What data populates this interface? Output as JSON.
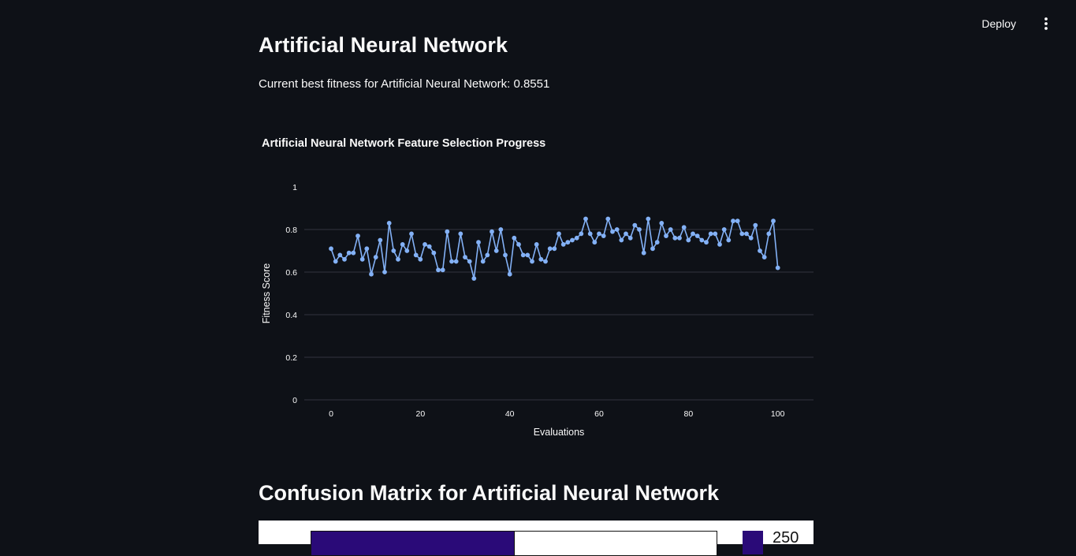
{
  "header": {
    "deploy_label": "Deploy",
    "menu_icon": "vertical-dots-icon"
  },
  "main": {
    "title": "Artificial Neural Network",
    "fitness_text": "Current best fitness for Artificial Neural Network: 0.8551"
  },
  "chart_data": {
    "type": "line",
    "title": "Artificial Neural Network Feature Selection Progress",
    "xlabel": "Evaluations",
    "ylabel": "Fitness Score",
    "xlim": [
      -6,
      108
    ],
    "ylim": [
      0,
      1
    ],
    "x_ticks": [
      "0",
      "20",
      "40",
      "60",
      "80",
      "100"
    ],
    "y_ticks": [
      "0",
      "0.2",
      "0.4",
      "0.6",
      "0.8",
      "1"
    ],
    "grid": true,
    "line_color": "#83b1f6",
    "series": [
      {
        "x": [
          0,
          1,
          2,
          3,
          4,
          5,
          6,
          7,
          8,
          9,
          10,
          11,
          12,
          13,
          14,
          15,
          16,
          17,
          18,
          19,
          20,
          21,
          22,
          23,
          24,
          25,
          26,
          27,
          28,
          29,
          30,
          31,
          32,
          33,
          34,
          35,
          36,
          37,
          38,
          39,
          40,
          41,
          42,
          43,
          44,
          45,
          46,
          47,
          48,
          49,
          50,
          51,
          52,
          53,
          54,
          55,
          56,
          57,
          58,
          59,
          60,
          61,
          62,
          63,
          64,
          65,
          66,
          67,
          68,
          69,
          70,
          71,
          72,
          73,
          74,
          75,
          76,
          77,
          78,
          79,
          80,
          81,
          82,
          83,
          84,
          85,
          86,
          87,
          88,
          89,
          90,
          91,
          92,
          93,
          94,
          95,
          96,
          97,
          98,
          99,
          100
        ],
        "values": [
          0.71,
          0.65,
          0.68,
          0.66,
          0.69,
          0.69,
          0.77,
          0.66,
          0.71,
          0.59,
          0.67,
          0.75,
          0.6,
          0.83,
          0.7,
          0.66,
          0.73,
          0.7,
          0.78,
          0.68,
          0.66,
          0.73,
          0.72,
          0.69,
          0.61,
          0.61,
          0.79,
          0.65,
          0.65,
          0.78,
          0.67,
          0.65,
          0.57,
          0.74,
          0.65,
          0.68,
          0.79,
          0.7,
          0.8,
          0.68,
          0.59,
          0.76,
          0.73,
          0.68,
          0.68,
          0.65,
          0.73,
          0.66,
          0.65,
          0.71,
          0.71,
          0.78,
          0.73,
          0.74,
          0.75,
          0.76,
          0.78,
          0.85,
          0.78,
          0.74,
          0.78,
          0.77,
          0.85,
          0.79,
          0.8,
          0.75,
          0.78,
          0.76,
          0.82,
          0.8,
          0.69,
          0.85,
          0.71,
          0.74,
          0.83,
          0.77,
          0.8,
          0.76,
          0.76,
          0.81,
          0.75,
          0.78,
          0.77,
          0.75,
          0.74,
          0.78,
          0.78,
          0.73,
          0.8,
          0.75,
          0.84,
          0.84,
          0.78,
          0.78,
          0.76,
          0.82,
          0.7,
          0.67,
          0.78,
          0.84,
          0.62
        ]
      }
    ]
  },
  "confusion_matrix": {
    "title": "Confusion Matrix for Artificial Neural Network",
    "colorbar_top_label": "250",
    "dark_color": "#2a0a78",
    "light_color": "#ffffff"
  }
}
